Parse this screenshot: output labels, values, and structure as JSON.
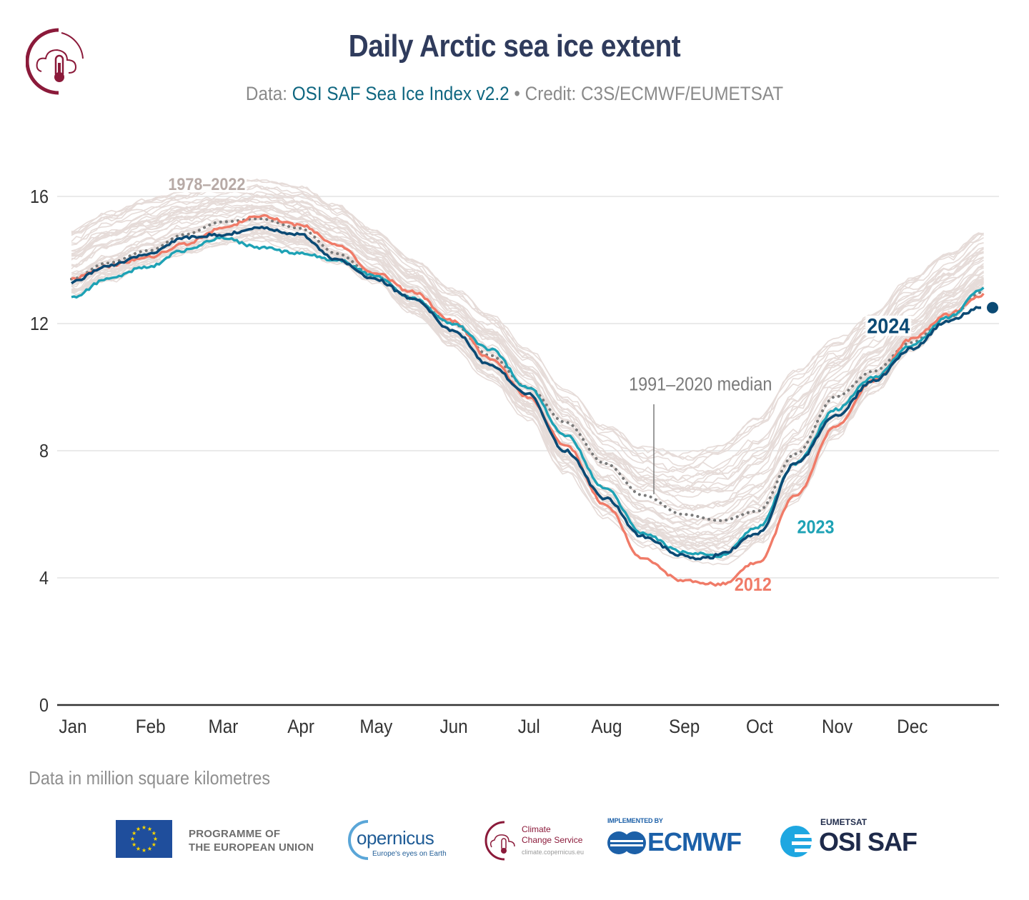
{
  "header": {
    "title": "Daily Arctic sea ice extent",
    "subtitle_prefix": "Data: ",
    "subtitle_link": "OSI SAF Sea Ice Index v2.2",
    "subtitle_suffix": " • Credit: C3S/ECMWF/EUMETSAT"
  },
  "footnote": "Data in million square kilometres",
  "logos": {
    "eu_text_line1": "PROGRAMME OF",
    "eu_text_line2": "THE EUROPEAN UNION",
    "copernicus_word": "opernicus",
    "copernicus_tagline": "Europe's eyes on Earth",
    "c3s_line1": "Climate",
    "c3s_line2": "Change Service",
    "c3s_url": "climate.copernicus.eu",
    "ecmwf_implemented": "IMPLEMENTED BY",
    "ecmwf_word": "ECMWF",
    "osi_eumetsat": "EUMETSAT",
    "osi_word": "OSI SAF"
  },
  "colors": {
    "background_years": "#e6dcd9",
    "median": "#7a7a7a",
    "y2012": "#f07b68",
    "y2023": "#1ea2b5",
    "y2024": "#0b4a74",
    "grid": "#e3e3e3",
    "axis": "#333333",
    "title": "#2f3b5c",
    "c3s_brand": "#8b1a3a"
  },
  "chart_data": {
    "type": "line",
    "title": "Daily Arctic sea ice extent",
    "xlabel": "",
    "ylabel": "Data in million square kilometres",
    "x_unit": "day of year",
    "xlim": [
      1,
      366
    ],
    "ylim": [
      0,
      16.5
    ],
    "yticks": [
      0,
      4,
      8,
      12,
      16
    ],
    "xtick_labels": [
      "Jan",
      "Feb",
      "Mar",
      "Apr",
      "May",
      "Jun",
      "Jul",
      "Aug",
      "Sep",
      "Oct",
      "Nov",
      "Dec"
    ],
    "xtick_days": [
      1,
      32,
      61,
      92,
      122,
      153,
      183,
      214,
      245,
      275,
      306,
      336
    ],
    "grid": true,
    "annotations": [
      {
        "text": "1978–2022",
        "series": "background",
        "x": 55,
        "y": 16.2
      },
      {
        "text": "1991–2020 median",
        "series": "median",
        "x": 252,
        "y": 9.9
      },
      {
        "text": "2012",
        "series": "2012",
        "x": 273,
        "y": 3.6
      },
      {
        "text": "2023",
        "series": "2023",
        "x": 298,
        "y": 5.4
      },
      {
        "text": "2024",
        "series": "2024",
        "x": 327,
        "y": 11.7
      }
    ],
    "background_range": {
      "label": "1978–2022",
      "x": [
        1,
        15,
        32,
        46,
        61,
        76,
        92,
        107,
        122,
        137,
        153,
        168,
        183,
        198,
        214,
        229,
        245,
        260,
        275,
        290,
        306,
        321,
        336,
        351,
        366
      ],
      "upper": [
        14.9,
        15.5,
        15.9,
        16.2,
        16.4,
        16.5,
        16.3,
        15.7,
        14.9,
        14.0,
        13.1,
        12.3,
        11.2,
        9.9,
        8.8,
        8.1,
        7.9,
        8.2,
        9.0,
        10.5,
        11.5,
        12.4,
        13.4,
        14.2,
        14.9
      ],
      "lower": [
        12.8,
        13.3,
        13.8,
        14.2,
        14.5,
        14.6,
        14.3,
        13.9,
        13.3,
        12.3,
        11.2,
        10.2,
        9.0,
        7.3,
        5.9,
        5.0,
        4.6,
        4.4,
        4.9,
        6.3,
        8.4,
        9.8,
        11.1,
        12.1,
        13.0
      ]
    },
    "series": [
      {
        "name": "1991–2020 median",
        "style": "dotted",
        "x": [
          1,
          15,
          32,
          46,
          61,
          76,
          92,
          107,
          122,
          137,
          153,
          168,
          183,
          198,
          214,
          229,
          245,
          260,
          275,
          290,
          306,
          321,
          336,
          351,
          365
        ],
        "values": [
          13.4,
          13.9,
          14.3,
          14.8,
          15.2,
          15.3,
          15.0,
          14.2,
          13.5,
          12.8,
          12.0,
          11.0,
          10.0,
          8.9,
          7.6,
          6.6,
          6.0,
          5.8,
          6.1,
          7.9,
          9.7,
          10.5,
          11.4,
          12.2,
          13.0
        ]
      },
      {
        "name": "2012",
        "x": [
          1,
          15,
          32,
          46,
          61,
          76,
          92,
          107,
          122,
          137,
          153,
          168,
          183,
          198,
          214,
          229,
          245,
          260,
          275,
          290,
          306,
          321,
          336,
          351,
          365
        ],
        "values": [
          13.4,
          13.8,
          14.1,
          14.5,
          15.0,
          15.4,
          15.1,
          14.5,
          13.6,
          13.0,
          12.1,
          10.9,
          9.7,
          8.2,
          6.3,
          4.6,
          3.9,
          3.8,
          4.5,
          6.6,
          8.8,
          10.2,
          11.5,
          12.3,
          12.9
        ]
      },
      {
        "name": "2023",
        "x": [
          1,
          15,
          32,
          46,
          61,
          76,
          92,
          107,
          122,
          137,
          153,
          168,
          183,
          198,
          214,
          229,
          245,
          260,
          275,
          290,
          306,
          321,
          336,
          351,
          365
        ],
        "values": [
          12.8,
          13.4,
          13.8,
          14.3,
          14.7,
          14.4,
          14.2,
          14.0,
          13.5,
          12.8,
          12.0,
          11.2,
          10.0,
          8.5,
          6.8,
          5.4,
          4.8,
          4.7,
          5.6,
          7.6,
          9.3,
          10.3,
          11.3,
          12.2,
          13.1
        ]
      },
      {
        "name": "2024",
        "x": [
          1,
          15,
          32,
          46,
          61,
          76,
          92,
          107,
          122,
          137,
          153,
          168,
          183,
          198,
          214,
          229,
          245,
          252,
          256,
          260,
          275,
          290,
          306,
          321,
          336,
          351,
          364
        ],
        "values": [
          13.3,
          13.8,
          14.2,
          14.7,
          14.8,
          15.0,
          14.8,
          14.0,
          13.4,
          12.8,
          11.8,
          10.7,
          9.8,
          8.0,
          6.5,
          5.3,
          4.7,
          4.6,
          4.65,
          4.75,
          5.4,
          7.6,
          9.1,
          10.2,
          11.2,
          12.1,
          12.5
        ],
        "end_marker": true
      }
    ]
  }
}
